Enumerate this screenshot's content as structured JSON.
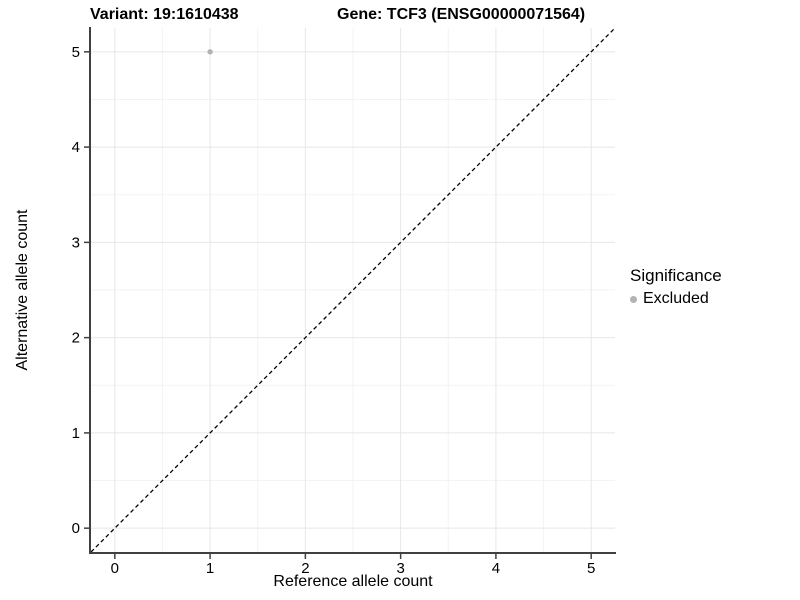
{
  "titles": {
    "variant": "Variant: 19:1610438",
    "gene": "Gene: TCF3 (ENSG00000071564)"
  },
  "axes": {
    "x_label": "Reference allele count",
    "y_label": "Alternative allele count"
  },
  "legend": {
    "title": "Significance",
    "items": [
      {
        "label": "Excluded",
        "color": "#b3b3b3"
      }
    ]
  },
  "chart_data": {
    "type": "scatter",
    "title": "Variant: 19:1610438 — Gene: TCF3 (ENSG00000071564)",
    "xlabel": "Reference allele count",
    "ylabel": "Alternative allele count",
    "xlim": [
      -0.25,
      5.25
    ],
    "ylim": [
      -0.25,
      5.25
    ],
    "x_ticks": [
      0,
      1,
      2,
      3,
      4,
      5
    ],
    "y_ticks": [
      0,
      1,
      2,
      3,
      4,
      5
    ],
    "x_minor_ticks": [
      0.5,
      1.5,
      2.5,
      3.5,
      4.5
    ],
    "y_minor_ticks": [
      0.5,
      1.5,
      2.5,
      3.5,
      4.5
    ],
    "grid": true,
    "legend_position": "right",
    "points": [
      {
        "x": 1,
        "y": 5,
        "significance": "Excluded",
        "color": "#b3b3b3"
      }
    ],
    "reference_line": {
      "type": "identity",
      "from": [
        -0.25,
        -0.25
      ],
      "to": [
        5.25,
        5.25
      ],
      "style": "dashed",
      "color": "#000000"
    },
    "colors": {
      "background": "#ffffff",
      "grid_major": "#e7e7e7",
      "grid_minor": "#f3f3f3",
      "axis_line": "#404040",
      "tick_text": "#000000",
      "point": "#b3b3b3"
    }
  }
}
